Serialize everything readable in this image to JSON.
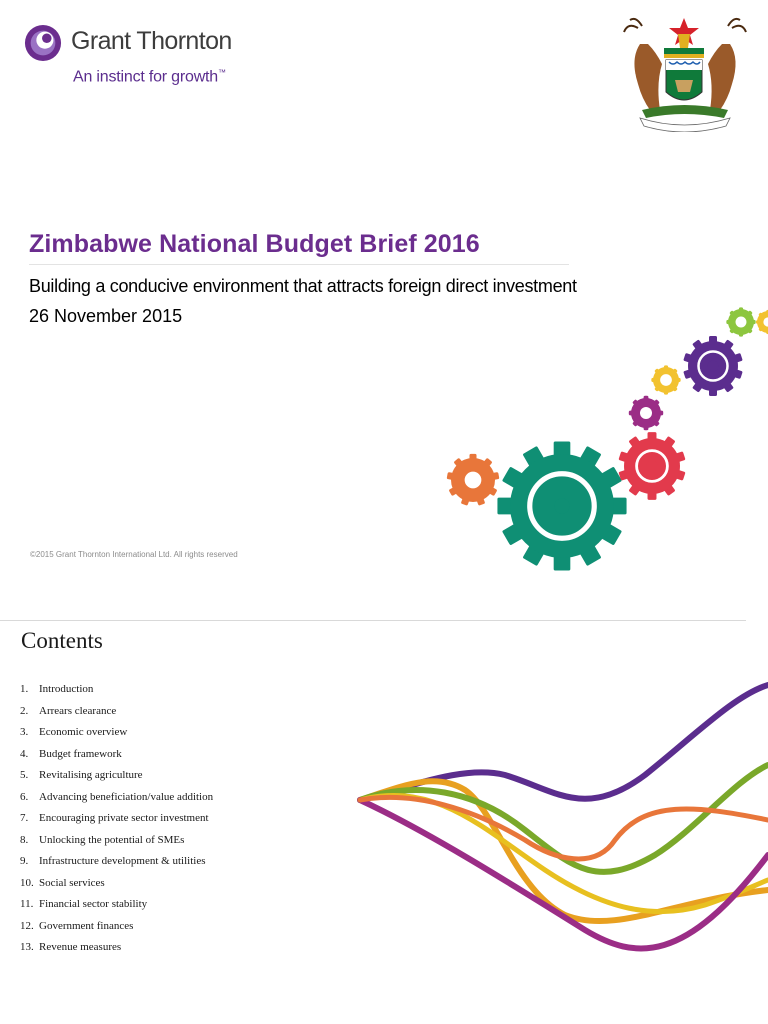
{
  "header": {
    "brand_name": "Grant Thornton",
    "brand_tagline": "An instinct for growth",
    "brand_tagline_tm": "™",
    "logo_icon": "grant-thornton-swirl-icon",
    "coat_of_arms_icon": "zimbabwe-coat-of-arms-icon"
  },
  "cover": {
    "title": "Zimbabwe National Budget Brief 2016",
    "subtitle": "Building a conducive environment that attracts foreign direct investment",
    "date": "26 November 2015",
    "copyright": "©2015 Grant Thornton International Ltd. All rights reserved",
    "graphic_icon": "gears-graphic",
    "colors": {
      "title": "#6b2d8e",
      "gear_teal": "#0f8f74",
      "gear_red": "#e23a4c",
      "gear_orange": "#e8763a",
      "gear_purple": "#5b2d8e",
      "gear_magenta": "#9b2d86",
      "gear_yellow": "#f2c230",
      "gear_green": "#8dc63f"
    }
  },
  "contents": {
    "heading": "Contents",
    "items": [
      {
        "num": "1.",
        "label": "Introduction"
      },
      {
        "num": "2.",
        "label": "Arrears clearance"
      },
      {
        "num": "3.",
        "label": "Economic overview"
      },
      {
        "num": "4.",
        "label": "Budget framework"
      },
      {
        "num": "5.",
        "label": "Revitalising agriculture"
      },
      {
        "num": "6.",
        "label": "Advancing beneficiation/value addition"
      },
      {
        "num": "7.",
        "label": "Encouraging private sector investment"
      },
      {
        "num": "8.",
        "label": "Unlocking the potential of SMEs"
      },
      {
        "num": "9.",
        "label": "Infrastructure development & utilities"
      },
      {
        "num": "10.",
        "label": "Social services"
      },
      {
        "num": "11.",
        "label": "Financial sector stability"
      },
      {
        "num": "12.",
        "label": "Government finances"
      },
      {
        "num": "13.",
        "label": "Revenue measures"
      }
    ],
    "graphic_icon": "wave-ribbons-graphic"
  }
}
